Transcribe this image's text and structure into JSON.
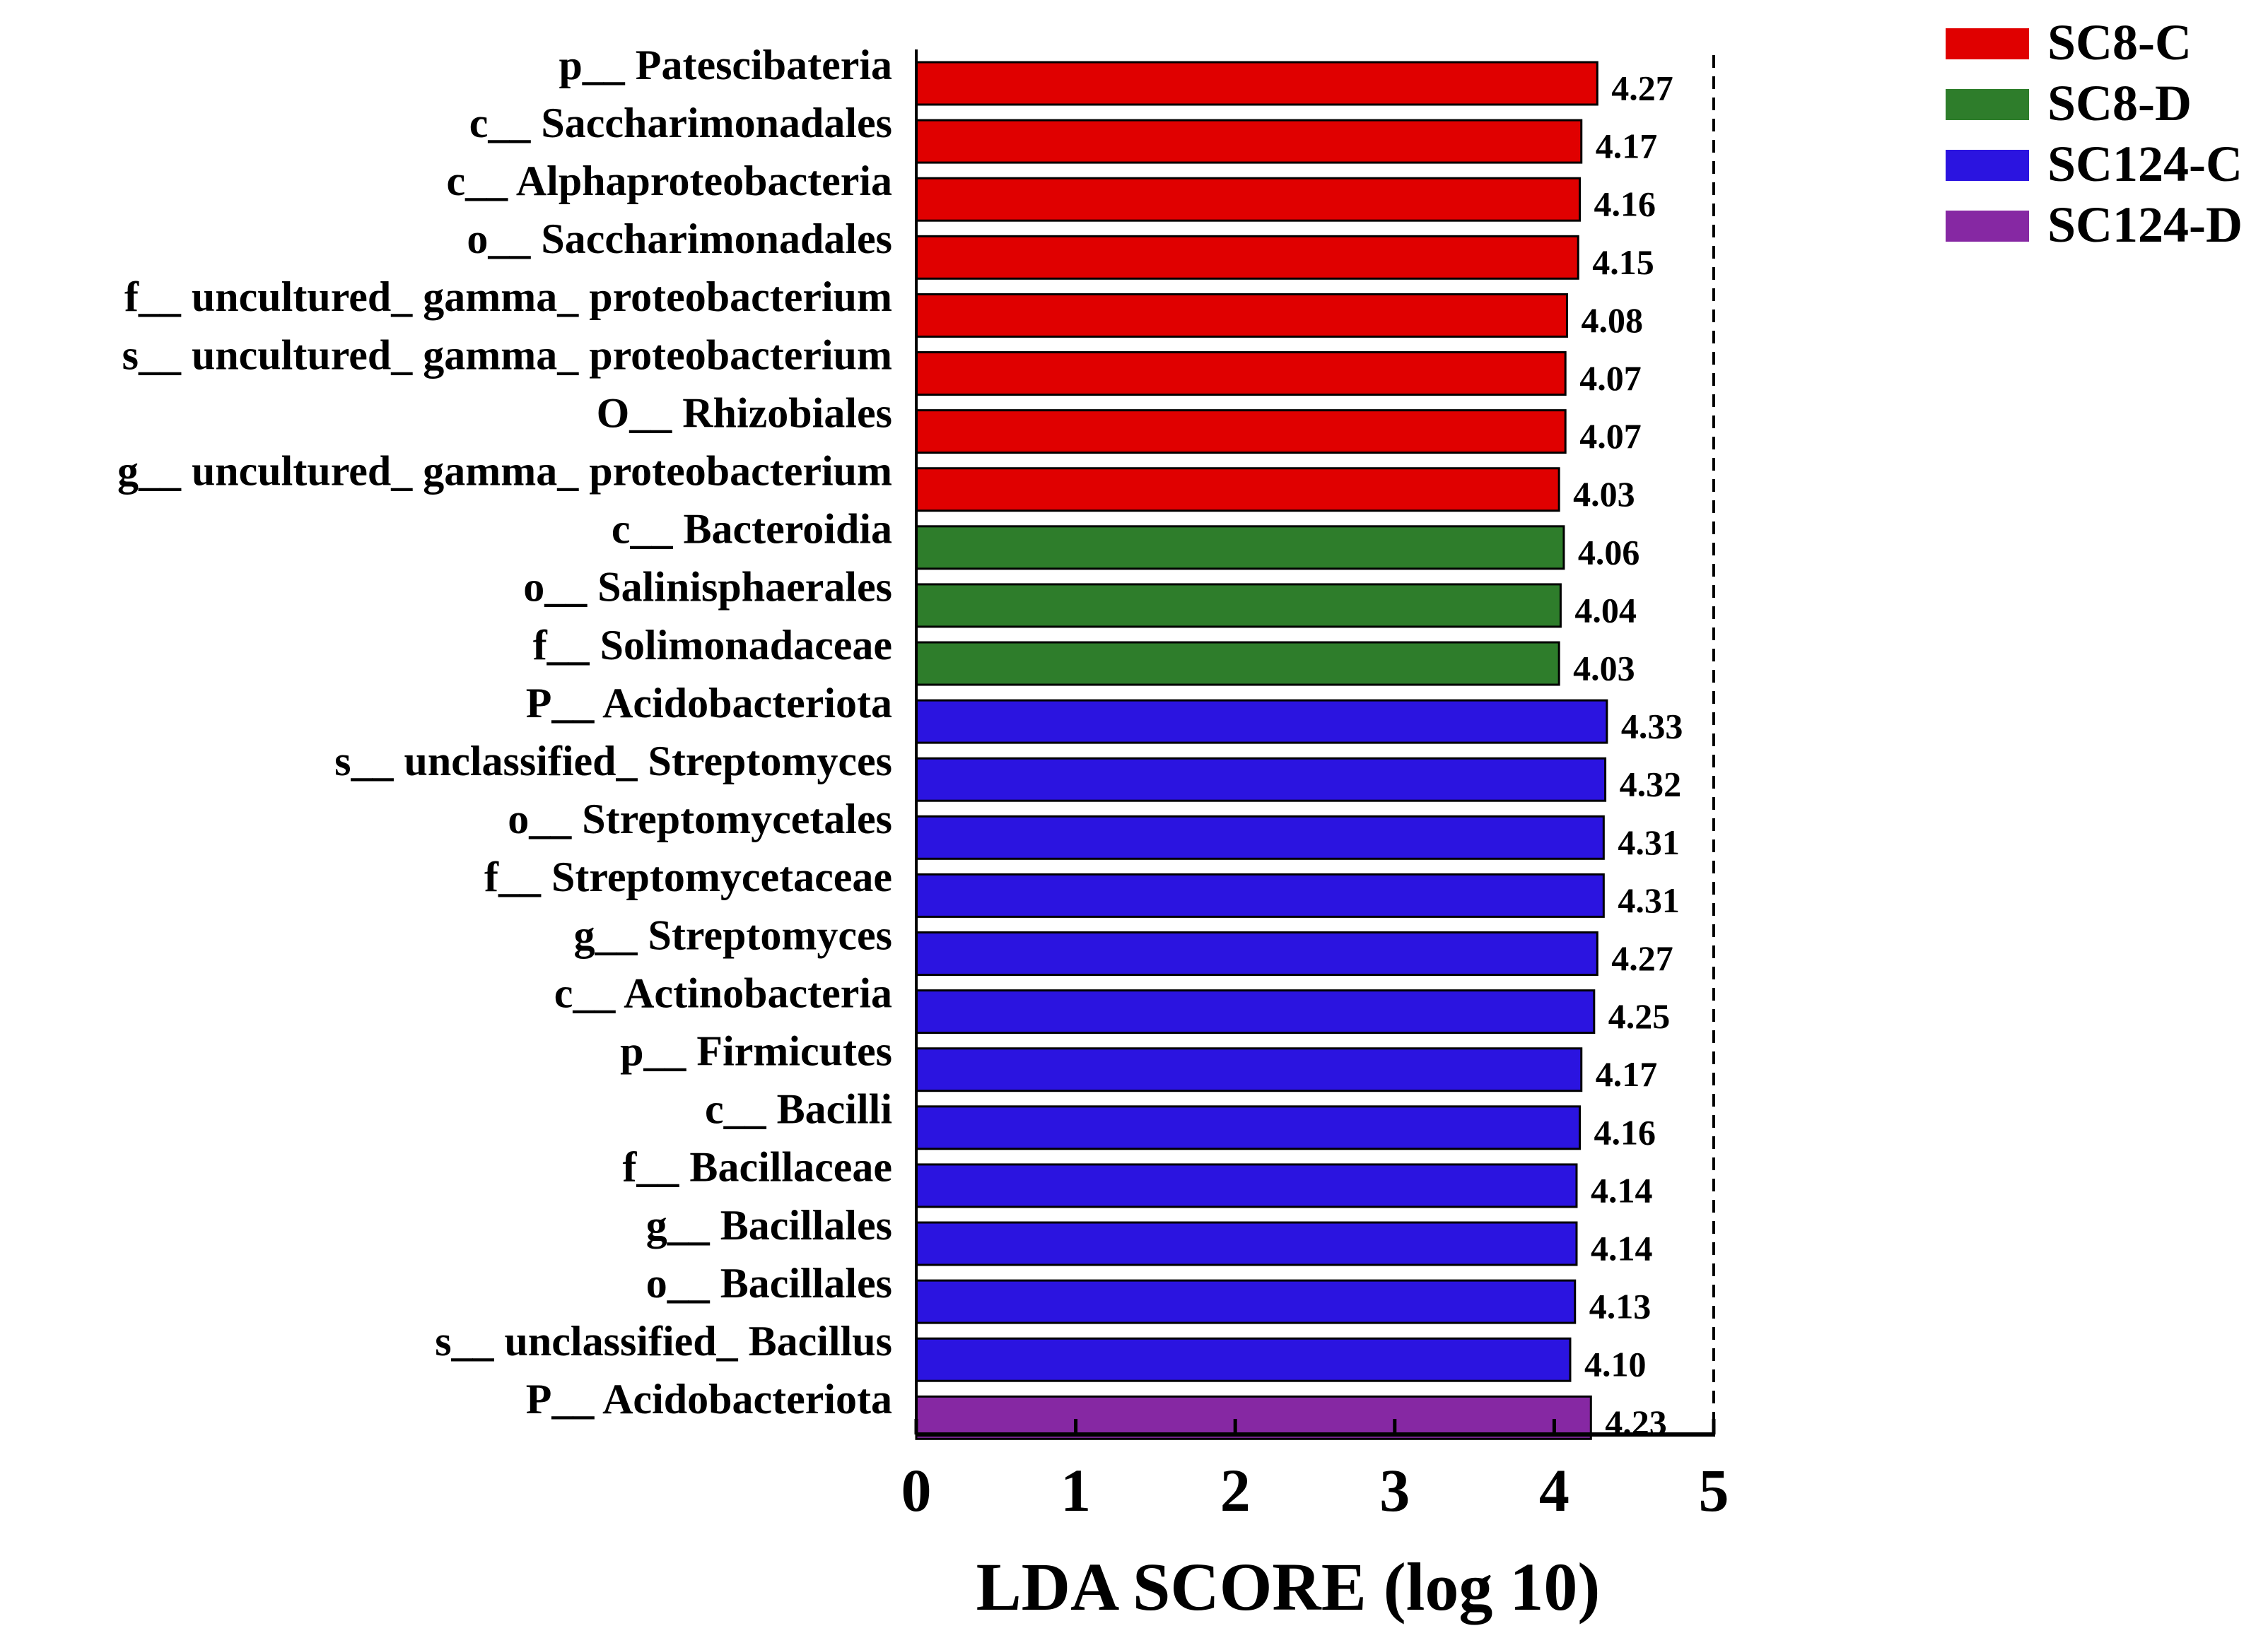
{
  "chart_data": {
    "type": "bar",
    "orientation": "horizontal",
    "title": "",
    "xlabel": "LDA SCORE (log 10)",
    "ylabel": "",
    "xlim": [
      0,
      5
    ],
    "xticks": [
      "0",
      "1",
      "2",
      "3",
      "4",
      "5"
    ],
    "reference_line": 5,
    "legend_position": "top-right",
    "groups": [
      {
        "name": "SC8-C",
        "color": "#e00000"
      },
      {
        "name": "SC8-D",
        "color": "#2e7d2b"
      },
      {
        "name": "SC124-C",
        "color": "#2b14e0"
      },
      {
        "name": "SC124-D",
        "color": "#8628a3"
      }
    ],
    "bars": [
      {
        "label": "p__ Patescibateria",
        "value": 4.27,
        "value_label": "4.27",
        "group": "SC8-C"
      },
      {
        "label": "c__ Saccharimonadales",
        "value": 4.17,
        "value_label": "4.17",
        "group": "SC8-C"
      },
      {
        "label": "c__ Alphaproteobacteria",
        "value": 4.16,
        "value_label": "4.16",
        "group": "SC8-C"
      },
      {
        "label": "o__ Saccharimonadales",
        "value": 4.15,
        "value_label": "4.15",
        "group": "SC8-C"
      },
      {
        "label": "f__ uncultured_ gamma_ proteobacterium",
        "value": 4.08,
        "value_label": "4.08",
        "group": "SC8-C"
      },
      {
        "label": "s__ uncultured_ gamma_ proteobacterium",
        "value": 4.07,
        "value_label": "4.07",
        "group": "SC8-C"
      },
      {
        "label": "O__ Rhizobiales",
        "value": 4.07,
        "value_label": "4.07",
        "group": "SC8-C"
      },
      {
        "label": "g__ uncultured_ gamma_ proteobacterium",
        "value": 4.03,
        "value_label": "4.03",
        "group": "SC8-C"
      },
      {
        "label": "c__ Bacteroidia",
        "value": 4.06,
        "value_label": "4.06",
        "group": "SC8-D"
      },
      {
        "label": "o__ Salinisphaerales",
        "value": 4.04,
        "value_label": "4.04",
        "group": "SC8-D"
      },
      {
        "label": "f__ Solimonadaceae",
        "value": 4.03,
        "value_label": "4.03",
        "group": "SC8-D"
      },
      {
        "label": "P__ Acidobacteriota",
        "value": 4.33,
        "value_label": "4.33",
        "group": "SC124-C"
      },
      {
        "label": "s__ unclassified_ Streptomyces",
        "value": 4.32,
        "value_label": "4.32",
        "group": "SC124-C"
      },
      {
        "label": "o__ Streptomycetales",
        "value": 4.31,
        "value_label": "4.31",
        "group": "SC124-C"
      },
      {
        "label": "f__ Streptomycetaceae",
        "value": 4.31,
        "value_label": "4.31",
        "group": "SC124-C"
      },
      {
        "label": "g__ Streptomyces",
        "value": 4.27,
        "value_label": "4.27",
        "group": "SC124-C"
      },
      {
        "label": "c__ Actinobacteria",
        "value": 4.25,
        "value_label": "4.25",
        "group": "SC124-C"
      },
      {
        "label": "p__ Firmicutes",
        "value": 4.17,
        "value_label": "4.17",
        "group": "SC124-C"
      },
      {
        "label": "c__ Bacilli",
        "value": 4.16,
        "value_label": "4.16",
        "group": "SC124-C"
      },
      {
        "label": "f__ Bacillaceae",
        "value": 4.14,
        "value_label": "4.14",
        "group": "SC124-C"
      },
      {
        "label": "g__ Bacillales",
        "value": 4.14,
        "value_label": "4.14",
        "group": "SC124-C"
      },
      {
        "label": "o__ Bacillales",
        "value": 4.13,
        "value_label": "4.13",
        "group": "SC124-C"
      },
      {
        "label": "s__ unclassified_ Bacillus",
        "value": 4.1,
        "value_label": "4.10",
        "group": "SC124-C"
      },
      {
        "label": "P__ Acidobacteriota",
        "value": 4.23,
        "value_label": "4.23",
        "group": "SC124-D"
      }
    ]
  }
}
